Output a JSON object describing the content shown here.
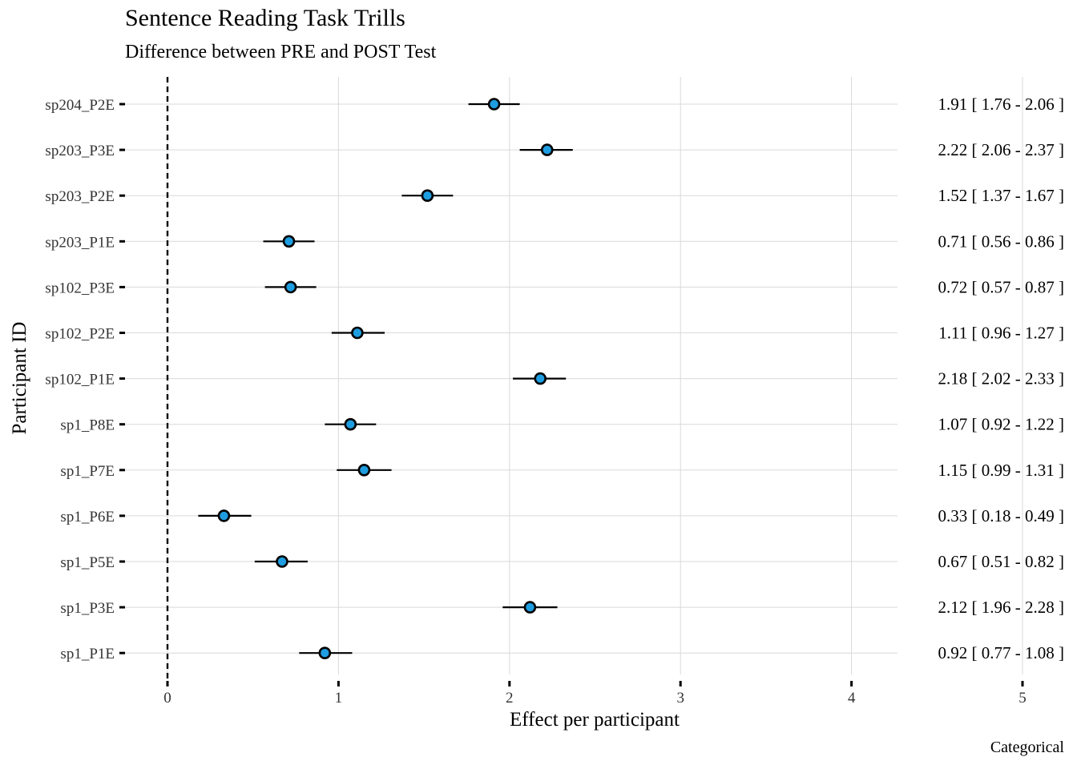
{
  "chart_data": {
    "type": "forest",
    "title": "Sentence Reading Task Trills",
    "subtitle": "Difference between PRE and POST Test",
    "xlabel": "Effect per participant",
    "ylabel": "Participant ID",
    "caption": "Categorical",
    "xlim": [
      0,
      5
    ],
    "xticks": [
      "0",
      "1",
      "2",
      "3",
      "4",
      "5"
    ],
    "reference_line": 0,
    "grid": true,
    "point_color": "#1e9de0",
    "participants": [
      {
        "id": "sp204_P2E",
        "estimate": 1.91,
        "lower": 1.76,
        "upper": 2.06,
        "label": "1.91 [ 1.76 - 2.06 ]"
      },
      {
        "id": "sp203_P3E",
        "estimate": 2.22,
        "lower": 2.06,
        "upper": 2.37,
        "label": "2.22 [ 2.06 - 2.37 ]"
      },
      {
        "id": "sp203_P2E",
        "estimate": 1.52,
        "lower": 1.37,
        "upper": 1.67,
        "label": "1.52 [ 1.37 - 1.67 ]"
      },
      {
        "id": "sp203_P1E",
        "estimate": 0.71,
        "lower": 0.56,
        "upper": 0.86,
        "label": "0.71 [ 0.56 - 0.86 ]"
      },
      {
        "id": "sp102_P3E",
        "estimate": 0.72,
        "lower": 0.57,
        "upper": 0.87,
        "label": "0.72 [ 0.57 - 0.87 ]"
      },
      {
        "id": "sp102_P2E",
        "estimate": 1.11,
        "lower": 0.96,
        "upper": 1.27,
        "label": "1.11 [ 0.96 - 1.27 ]"
      },
      {
        "id": "sp102_P1E",
        "estimate": 2.18,
        "lower": 2.02,
        "upper": 2.33,
        "label": "2.18 [ 2.02 - 2.33 ]"
      },
      {
        "id": "sp1_P8E",
        "estimate": 1.07,
        "lower": 0.92,
        "upper": 1.22,
        "label": "1.07 [ 0.92 - 1.22 ]"
      },
      {
        "id": "sp1_P7E",
        "estimate": 1.15,
        "lower": 0.99,
        "upper": 1.31,
        "label": "1.15 [ 0.99 - 1.31 ]"
      },
      {
        "id": "sp1_P6E",
        "estimate": 0.33,
        "lower": 0.18,
        "upper": 0.49,
        "label": "0.33 [ 0.18 - 0.49 ]"
      },
      {
        "id": "sp1_P5E",
        "estimate": 0.67,
        "lower": 0.51,
        "upper": 0.82,
        "label": "0.67 [ 0.51 - 0.82 ]"
      },
      {
        "id": "sp1_P3E",
        "estimate": 2.12,
        "lower": 1.96,
        "upper": 2.28,
        "label": "2.12 [ 1.96 - 2.28 ]"
      },
      {
        "id": "sp1_P1E",
        "estimate": 0.92,
        "lower": 0.77,
        "upper": 1.08,
        "label": "0.92 [ 0.77 - 1.08 ]"
      }
    ]
  }
}
